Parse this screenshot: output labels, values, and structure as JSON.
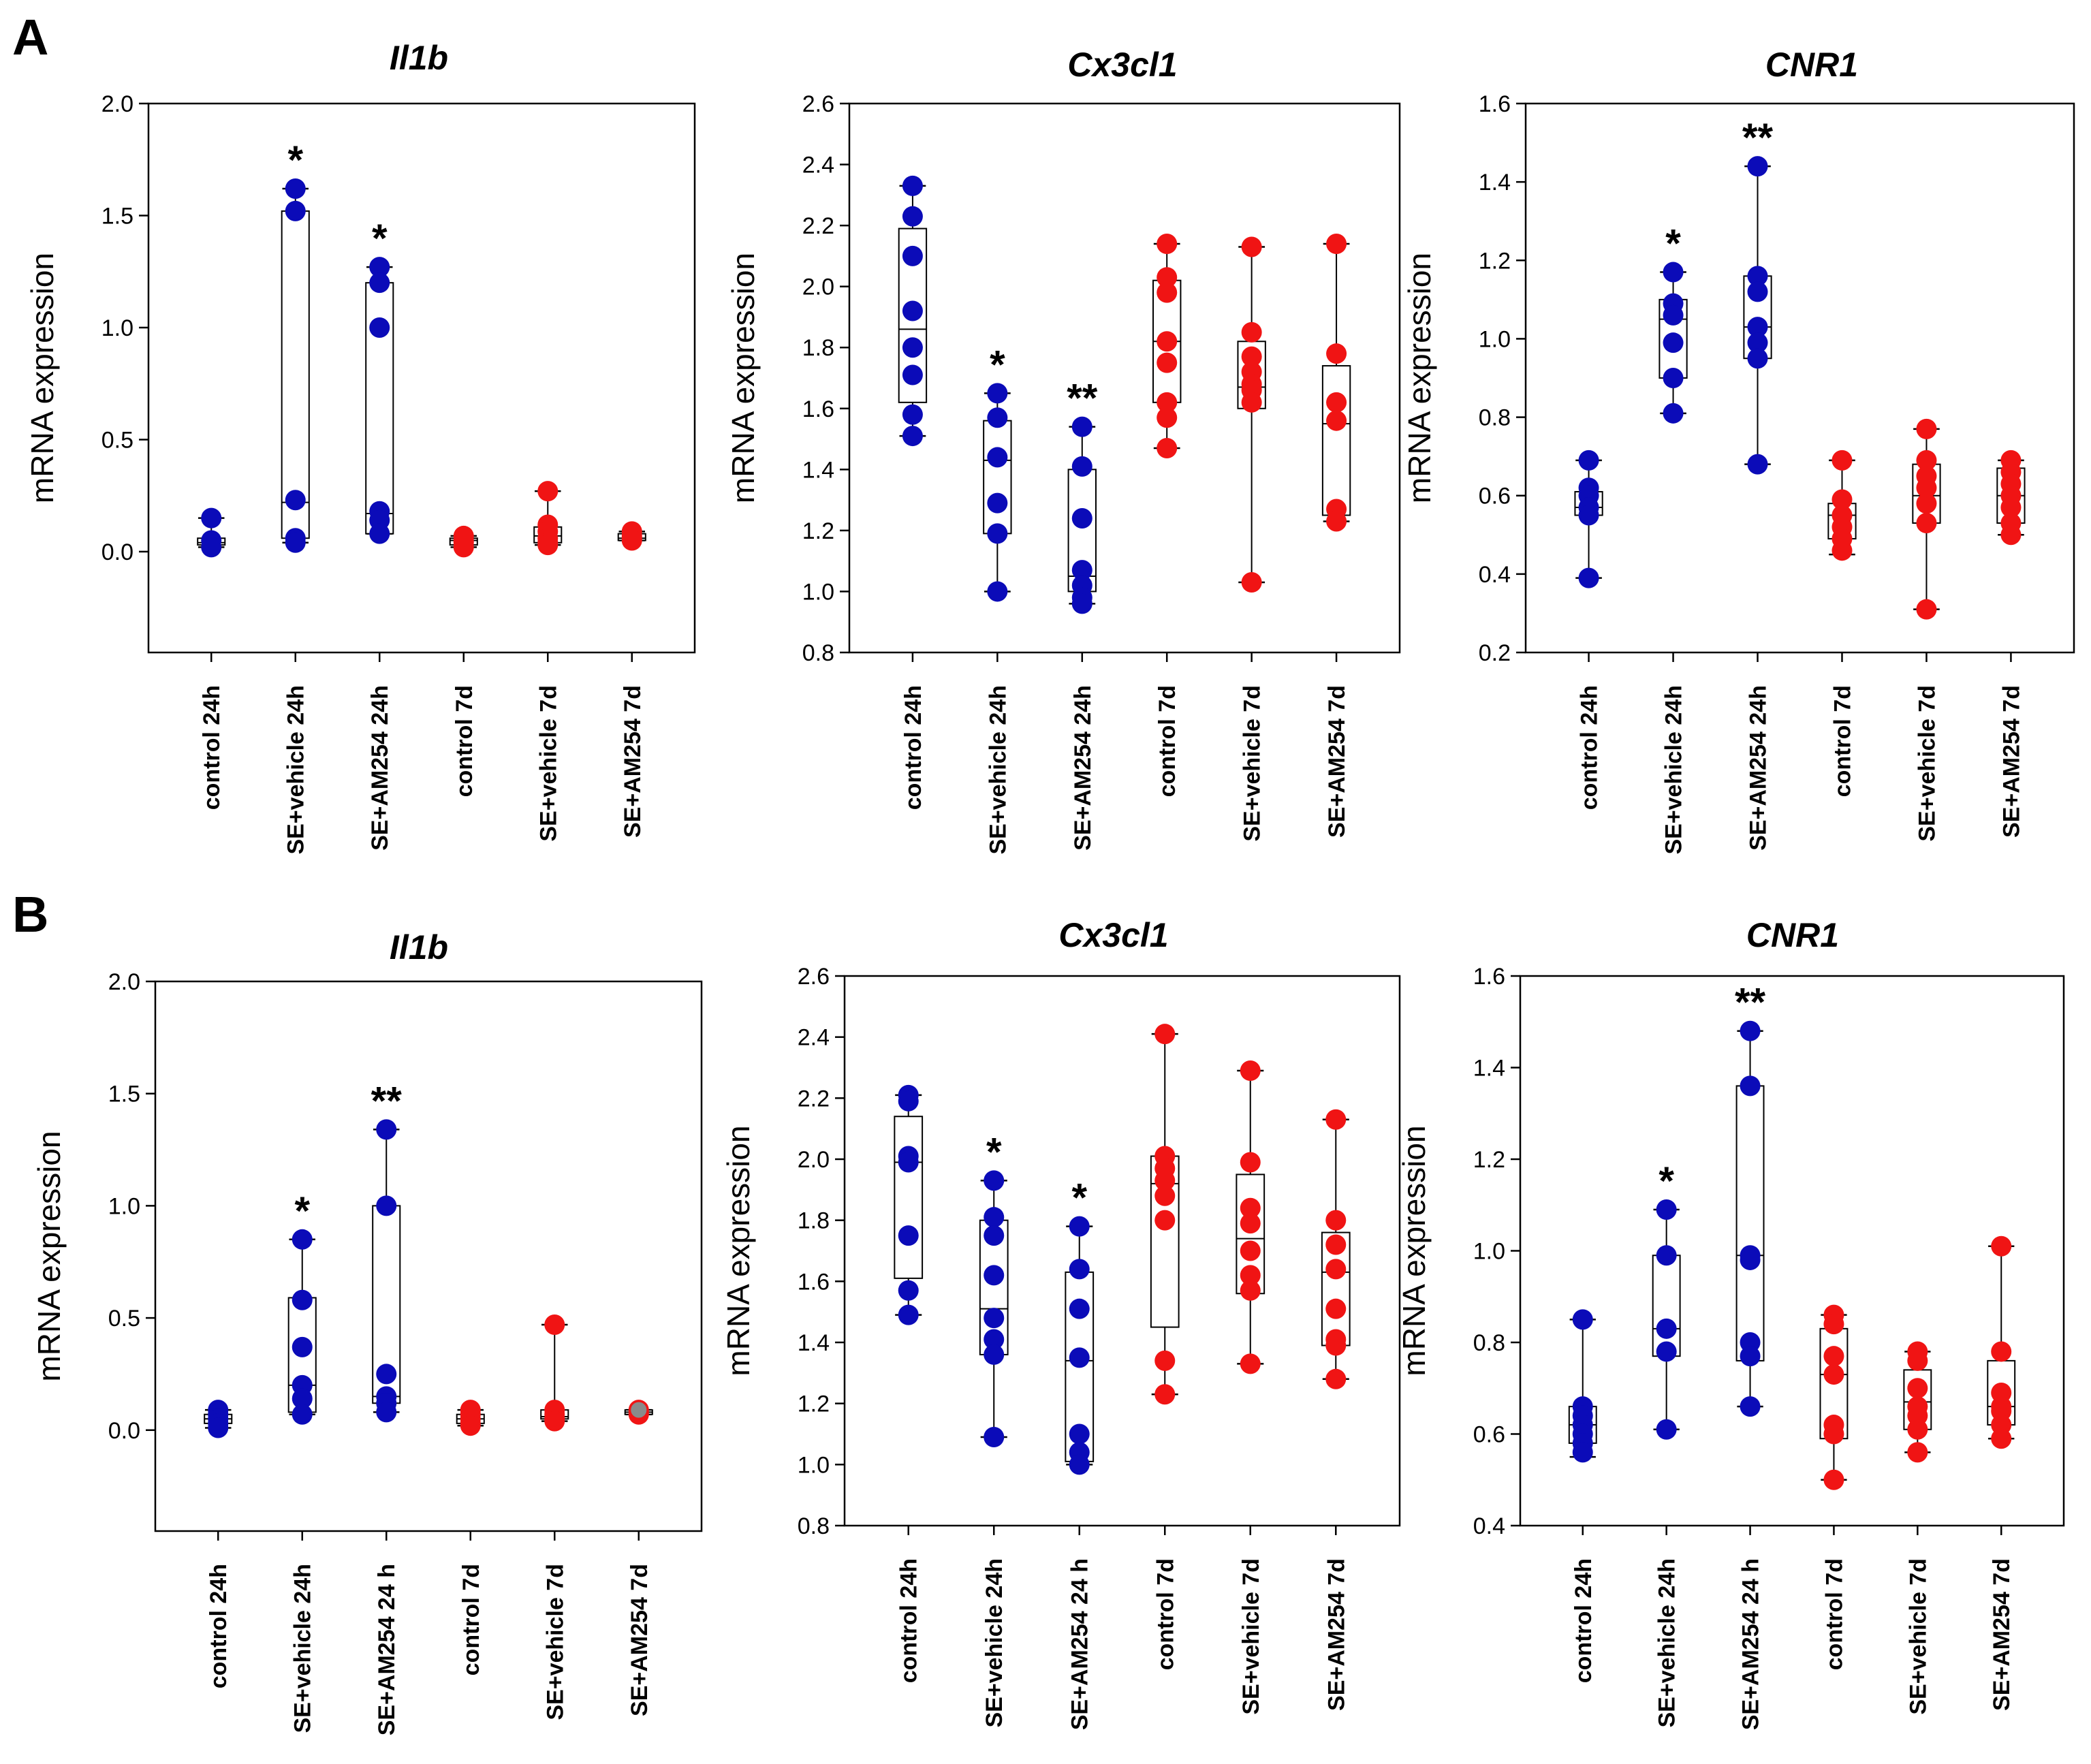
{
  "panels": [
    "A",
    "B"
  ],
  "colors": {
    "blue": "#0b0bb8",
    "red": "#f01414",
    "gray": "#8a8a8a",
    "axis": "#000000"
  },
  "chart_data": [
    {
      "panel": "A",
      "type": "box-scatter",
      "title": "Il1b",
      "ylabel": "mRNA expression",
      "ylim": [
        -0.45,
        2.0
      ],
      "yticks": [
        "2.0",
        "1.5",
        "1.0",
        "0.5",
        "0.0"
      ],
      "categories": [
        "control 24h",
        "SE+vehicle 24h",
        "SE+AM254 24h",
        "control 7d",
        "SE+vehicle 7d",
        "SE+AM254 7d"
      ],
      "groups": [
        {
          "color": "blue",
          "points": [
            0.15,
            0.05,
            0.02
          ],
          "box": [
            0.02,
            0.03,
            0.04,
            0.06,
            0.15
          ],
          "sig": ""
        },
        {
          "color": "blue",
          "points": [
            1.62,
            1.52,
            0.23,
            0.06,
            0.04
          ],
          "box": [
            0.04,
            0.06,
            0.22,
            1.52,
            1.62
          ],
          "sig": "*"
        },
        {
          "color": "blue",
          "points": [
            1.27,
            1.2,
            1.0,
            0.18,
            0.14,
            0.08
          ],
          "box": [
            0.08,
            0.08,
            0.17,
            1.2,
            1.27
          ],
          "sig": "*"
        },
        {
          "color": "red",
          "points": [
            0.07,
            0.05,
            0.04,
            0.02
          ],
          "box": [
            0.02,
            0.03,
            0.05,
            0.06,
            0.07
          ],
          "sig": ""
        },
        {
          "color": "red",
          "points": [
            0.27,
            0.12,
            0.09,
            0.06,
            0.04,
            0.03
          ],
          "box": [
            0.03,
            0.04,
            0.07,
            0.11,
            0.27
          ],
          "sig": ""
        },
        {
          "color": "red",
          "points": [
            0.09,
            0.07,
            0.06,
            0.05
          ],
          "box": [
            0.05,
            0.05,
            0.06,
            0.08,
            0.09
          ],
          "sig": ""
        }
      ]
    },
    {
      "panel": "A",
      "type": "box-scatter",
      "title": "Cx3cl1",
      "ylabel": "mRNA expression",
      "ylim": [
        0.8,
        2.6
      ],
      "yticks": [
        "2.6",
        "2.4",
        "2.2",
        "2.0",
        "1.8",
        "1.6",
        "1.4",
        "1.2",
        "1.0",
        "0.8"
      ],
      "categories": [
        "control 24h",
        "SE+vehicle 24h",
        "SE+AM254 24h",
        "control 7d",
        "SE+vehicle 7d",
        "SE+AM254 7d"
      ],
      "groups": [
        {
          "color": "blue",
          "points": [
            2.33,
            2.23,
            2.1,
            1.92,
            1.8,
            1.71,
            1.58,
            1.51
          ],
          "box": [
            1.51,
            1.62,
            1.86,
            2.19,
            2.33
          ],
          "sig": ""
        },
        {
          "color": "blue",
          "points": [
            1.65,
            1.57,
            1.44,
            1.29,
            1.19,
            1.0
          ],
          "box": [
            1.0,
            1.19,
            1.43,
            1.56,
            1.65
          ],
          "sig": "*"
        },
        {
          "color": "blue",
          "points": [
            1.54,
            1.41,
            1.24,
            1.07,
            1.02,
            0.98,
            0.96
          ],
          "box": [
            0.96,
            1.0,
            1.05,
            1.4,
            1.54
          ],
          "sig": "**"
        },
        {
          "color": "red",
          "points": [
            2.14,
            2.03,
            1.98,
            1.82,
            1.75,
            1.62,
            1.57,
            1.47
          ],
          "box": [
            1.47,
            1.62,
            1.82,
            2.02,
            2.14
          ],
          "sig": ""
        },
        {
          "color": "red",
          "points": [
            2.13,
            1.85,
            1.77,
            1.72,
            1.68,
            1.66,
            1.62,
            1.03
          ],
          "box": [
            1.03,
            1.6,
            1.67,
            1.82,
            2.13
          ],
          "sig": ""
        },
        {
          "color": "red",
          "points": [
            2.14,
            1.78,
            1.62,
            1.56,
            1.27,
            1.23
          ],
          "box": [
            1.23,
            1.25,
            1.55,
            1.74,
            2.14
          ],
          "sig": ""
        }
      ]
    },
    {
      "panel": "A",
      "type": "box-scatter",
      "title": "CNR1",
      "ylabel": "mRNA expression",
      "ylim": [
        0.2,
        1.6
      ],
      "yticks": [
        "1.6",
        "1.4",
        "1.2",
        "1.0",
        "0.8",
        "0.6",
        "0.4",
        "0.2"
      ],
      "categories": [
        "control 24h",
        "SE+vehicle 24h",
        "SE+AM254 24h",
        "control 7d",
        "SE+vehicle 7d",
        "SE+AM254 7d"
      ],
      "groups": [
        {
          "color": "blue",
          "points": [
            0.69,
            0.62,
            0.6,
            0.57,
            0.55,
            0.39
          ],
          "box": [
            0.39,
            0.55,
            0.57,
            0.61,
            0.69
          ],
          "sig": ""
        },
        {
          "color": "blue",
          "points": [
            1.17,
            1.09,
            1.06,
            0.99,
            0.9,
            0.81
          ],
          "box": [
            0.81,
            0.9,
            1.05,
            1.1,
            1.17
          ],
          "sig": "*"
        },
        {
          "color": "blue",
          "points": [
            1.44,
            1.16,
            1.12,
            1.03,
            0.99,
            0.95,
            0.68
          ],
          "box": [
            0.68,
            0.95,
            1.03,
            1.16,
            1.44
          ],
          "sig": "**"
        },
        {
          "color": "red",
          "points": [
            0.69,
            0.59,
            0.55,
            0.52,
            0.49,
            0.46
          ],
          "box": [
            0.45,
            0.49,
            0.55,
            0.58,
            0.69
          ],
          "sig": ""
        },
        {
          "color": "red",
          "points": [
            0.77,
            0.69,
            0.65,
            0.62,
            0.58,
            0.53,
            0.31
          ],
          "box": [
            0.31,
            0.53,
            0.6,
            0.68,
            0.77
          ],
          "sig": ""
        },
        {
          "color": "red",
          "points": [
            0.69,
            0.66,
            0.63,
            0.6,
            0.57,
            0.53,
            0.5
          ],
          "box": [
            0.5,
            0.53,
            0.6,
            0.67,
            0.69
          ],
          "sig": ""
        }
      ]
    },
    {
      "panel": "B",
      "type": "box-scatter",
      "title": "Il1b",
      "ylabel": "mRNA expression",
      "ylim": [
        -0.45,
        2.0
      ],
      "yticks": [
        "2.0",
        "1.5",
        "1.0",
        "0.5",
        "0.0"
      ],
      "categories": [
        "control 24h",
        "SE+vehicle 24h",
        "SE+AM254 24 h",
        "control 7d",
        "SE+vehicle 7d",
        "SE+AM254 7d"
      ],
      "groups": [
        {
          "color": "blue",
          "points": [
            0.09,
            0.07,
            0.05,
            0.03,
            0.01
          ],
          "box": [
            0.01,
            0.03,
            0.05,
            0.07,
            0.09
          ],
          "sig": ""
        },
        {
          "color": "blue",
          "points": [
            0.85,
            0.58,
            0.37,
            0.2,
            0.14,
            0.07
          ],
          "box": [
            0.07,
            0.08,
            0.2,
            0.59,
            0.85
          ],
          "sig": "*"
        },
        {
          "color": "blue",
          "points": [
            1.34,
            1.0,
            0.25,
            0.15,
            0.12,
            0.08
          ],
          "box": [
            0.08,
            0.12,
            0.15,
            1.0,
            1.34
          ],
          "sig": "**"
        },
        {
          "color": "red",
          "points": [
            0.09,
            0.07,
            0.05,
            0.03,
            0.02
          ],
          "box": [
            0.02,
            0.03,
            0.05,
            0.07,
            0.09
          ],
          "sig": ""
        },
        {
          "color": "red",
          "points": [
            0.47,
            0.09,
            0.07,
            0.05,
            0.04
          ],
          "box": [
            0.04,
            0.05,
            0.06,
            0.09,
            0.47
          ],
          "sig": ""
        },
        {
          "color": "red",
          "points": [
            0.09,
            0.08,
            0.07
          ],
          "box": [
            0.07,
            0.07,
            0.08,
            0.09,
            0.09
          ],
          "gray": [
            0.09
          ],
          "sig": ""
        }
      ]
    },
    {
      "panel": "B",
      "type": "box-scatter",
      "title": "Cx3cl1",
      "ylabel": "mRNA expression",
      "ylim": [
        0.8,
        2.6
      ],
      "yticks": [
        "2.6",
        "2.4",
        "2.2",
        "2.0",
        "1.8",
        "1.6",
        "1.4",
        "1.2",
        "1.0",
        "0.8"
      ],
      "categories": [
        "control 24h",
        "SE+vehicle 24h",
        "SE+AM254 24 h",
        "control 7d",
        "SE+vehicle 7d",
        "SE+AM254 7d"
      ],
      "groups": [
        {
          "color": "blue",
          "points": [
            2.21,
            2.19,
            2.01,
            1.99,
            1.75,
            1.57,
            1.49
          ],
          "box": [
            1.49,
            1.61,
            1.99,
            2.14,
            2.21
          ],
          "sig": ""
        },
        {
          "color": "blue",
          "points": [
            1.93,
            1.81,
            1.75,
            1.62,
            1.48,
            1.41,
            1.36,
            1.09
          ],
          "box": [
            1.09,
            1.36,
            1.51,
            1.8,
            1.93
          ],
          "sig": "*"
        },
        {
          "color": "blue",
          "points": [
            1.78,
            1.64,
            1.51,
            1.35,
            1.1,
            1.04,
            1.0
          ],
          "box": [
            1.0,
            1.01,
            1.34,
            1.63,
            1.78
          ],
          "sig": "*"
        },
        {
          "color": "red",
          "points": [
            2.41,
            2.01,
            1.97,
            1.93,
            1.88,
            1.8,
            1.34,
            1.23
          ],
          "box": [
            1.23,
            1.45,
            1.92,
            2.01,
            2.41
          ],
          "sig": ""
        },
        {
          "color": "red",
          "points": [
            2.29,
            1.99,
            1.84,
            1.79,
            1.7,
            1.62,
            1.57,
            1.33
          ],
          "box": [
            1.33,
            1.56,
            1.74,
            1.95,
            2.29
          ],
          "sig": ""
        },
        {
          "color": "red",
          "points": [
            2.13,
            1.8,
            1.72,
            1.64,
            1.51,
            1.41,
            1.39,
            1.28
          ],
          "box": [
            1.28,
            1.39,
            1.63,
            1.76,
            2.13
          ],
          "sig": ""
        }
      ]
    },
    {
      "panel": "B",
      "type": "box-scatter",
      "title": "CNR1",
      "ylabel": "mRNA expression",
      "ylim": [
        0.4,
        1.6
      ],
      "yticks": [
        "1.6",
        "1.4",
        "1.2",
        "1.0",
        "0.8",
        "0.6",
        "0.4"
      ],
      "categories": [
        "control 24h",
        "SE+vehicle 24h",
        "SE+AM254 24 h",
        "control 7d",
        "SE+vehicle 7d",
        "SE+AM254 7d"
      ],
      "groups": [
        {
          "color": "blue",
          "points": [
            0.85,
            0.66,
            0.64,
            0.62,
            0.6,
            0.58,
            0.56
          ],
          "box": [
            0.55,
            0.58,
            0.62,
            0.66,
            0.85
          ],
          "sig": ""
        },
        {
          "color": "blue",
          "points": [
            1.09,
            0.99,
            0.83,
            0.78,
            0.61
          ],
          "box": [
            0.61,
            0.77,
            0.83,
            0.99,
            1.09
          ],
          "sig": "*"
        },
        {
          "color": "blue",
          "points": [
            1.48,
            1.36,
            0.99,
            0.98,
            0.8,
            0.77,
            0.66
          ],
          "box": [
            0.66,
            0.76,
            0.99,
            1.36,
            1.48
          ],
          "sig": "**"
        },
        {
          "color": "red",
          "points": [
            0.86,
            0.84,
            0.77,
            0.73,
            0.62,
            0.6,
            0.5
          ],
          "box": [
            0.5,
            0.59,
            0.73,
            0.83,
            0.86
          ],
          "sig": ""
        },
        {
          "color": "red",
          "points": [
            0.78,
            0.76,
            0.7,
            0.66,
            0.64,
            0.61,
            0.56
          ],
          "box": [
            0.56,
            0.61,
            0.67,
            0.74,
            0.78
          ],
          "sig": ""
        },
        {
          "color": "red",
          "points": [
            1.01,
            0.78,
            0.69,
            0.66,
            0.65,
            0.62,
            0.59
          ],
          "box": [
            0.59,
            0.62,
            0.66,
            0.76,
            1.01
          ],
          "sig": ""
        }
      ]
    }
  ]
}
